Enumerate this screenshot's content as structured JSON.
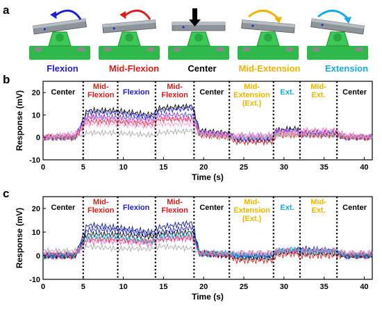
{
  "panels_label": {
    "a": "a",
    "b": "b",
    "c": "c"
  },
  "photo_titles": [
    {
      "text": "Flexion",
      "color": "#1f1fd6"
    },
    {
      "text": "Mid-Flexion",
      "color": "#e01b1b"
    },
    {
      "text": "Center",
      "color": "#000000"
    },
    {
      "text": "Mid-Extension",
      "color": "#f0b400"
    },
    {
      "text": "Extension",
      "color": "#1aa8e6"
    }
  ],
  "colors": {
    "center": "#000000",
    "mid_flexion": "#e01b1b",
    "flexion": "#1f1fd6",
    "mid_extension": "#f0b400",
    "extension": "#1aa8e6"
  },
  "icons": [
    "curved-arrow-left-icon",
    "curved-arrow-left-icon",
    "down-arrow-icon",
    "curved-arrow-right-icon",
    "curved-arrow-right-icon"
  ],
  "chart_data": [
    {
      "type": "line",
      "panel": "b",
      "xlabel": "Time (s)",
      "ylabel": "Response (mV)",
      "xlim": [
        0,
        41
      ],
      "ylim": [
        -10,
        25
      ],
      "xticks": [
        0,
        5,
        10,
        15,
        20,
        25,
        30,
        35,
        40
      ],
      "yticks": [
        -10,
        0,
        10,
        20
      ],
      "dividers": [
        5,
        9.3,
        14,
        18.8,
        23.2,
        28.7,
        32,
        36.6
      ],
      "segments": [
        {
          "lines": [
            "Center"
          ],
          "x": 2.5,
          "colorKey": "center"
        },
        {
          "lines": [
            "Mid-",
            "Flexion"
          ],
          "x": 7.2,
          "colorKey": "mid_flexion"
        },
        {
          "lines": [
            "Flexion"
          ],
          "x": 11.6,
          "colorKey": "flexion"
        },
        {
          "lines": [
            "Mid-",
            "Flexion"
          ],
          "x": 16.4,
          "colorKey": "mid_flexion"
        },
        {
          "lines": [
            "Center"
          ],
          "x": 21.0,
          "colorKey": "center"
        },
        {
          "lines": [
            "Mid-",
            "Extension",
            "(Ext.)"
          ],
          "x": 26.0,
          "colorKey": "mid_extension"
        },
        {
          "lines": [
            "Ext."
          ],
          "x": 30.4,
          "colorKey": "extension"
        },
        {
          "lines": [
            "Mid-",
            "Ext."
          ],
          "x": 34.3,
          "colorKey": "mid_extension"
        },
        {
          "lines": [
            "Center"
          ],
          "x": 38.8,
          "colorKey": "center"
        }
      ],
      "series": [
        {
          "color": "#000000",
          "x": [
            0,
            4,
            5.5,
            9,
            13.5,
            14.5,
            18.6,
            19.5,
            23.2,
            24,
            28.5,
            29,
            31.5,
            32,
            36.5,
            37.5,
            41
          ],
          "y": [
            0,
            0,
            12,
            12,
            10,
            13,
            14,
            3,
            2,
            -1,
            -1,
            3,
            4,
            2,
            2,
            0,
            0
          ]
        },
        {
          "color": "#1f1fd6",
          "x": [
            0,
            4,
            5.5,
            9,
            13.5,
            14.5,
            18.6,
            19.5,
            23.2,
            24,
            28.5,
            29,
            31.5,
            32,
            36.5,
            37.5,
            41
          ],
          "y": [
            0,
            0,
            11,
            11,
            9,
            12,
            13,
            2,
            1,
            -1,
            -1,
            3,
            3,
            2,
            2,
            0,
            0
          ]
        },
        {
          "color": "#5a3fd6",
          "x": [
            0,
            4,
            5.5,
            9,
            13.5,
            14.5,
            18.6,
            19.5,
            23.2,
            24,
            28.5,
            29,
            31.5,
            32,
            36.5,
            37.5,
            41
          ],
          "y": [
            0,
            0,
            9,
            9,
            8,
            10,
            10,
            2,
            1,
            0,
            0,
            2,
            3,
            1,
            1,
            0,
            0
          ]
        },
        {
          "color": "#e01b1b",
          "x": [
            0,
            4,
            5.5,
            9,
            13.5,
            14.5,
            18.6,
            19.5,
            23.2,
            24,
            28.5,
            29,
            31.5,
            32,
            36.5,
            37.5,
            41
          ],
          "y": [
            0,
            0,
            7,
            7,
            6,
            8,
            8,
            1,
            0,
            -2,
            -2,
            1,
            1,
            1,
            1,
            0,
            0
          ]
        },
        {
          "color": "#ff5fc8",
          "x": [
            0,
            4,
            5.5,
            9,
            13.5,
            14.5,
            18.6,
            19.5,
            23.2,
            24,
            28.5,
            29,
            31.5,
            32,
            36.5,
            37.5,
            41
          ],
          "y": [
            0,
            1,
            9,
            8,
            7,
            9,
            8,
            2,
            1,
            1,
            1,
            3,
            2,
            3,
            3,
            1,
            0
          ]
        },
        {
          "color": "#ff9ad6",
          "x": [
            0,
            4,
            5.5,
            9,
            13.5,
            14.5,
            18.6,
            19.5,
            23.2,
            24,
            28.5,
            29,
            31.5,
            32,
            36.5,
            37.5,
            41
          ],
          "y": [
            0,
            2,
            6,
            6,
            5,
            6,
            6,
            2,
            1,
            0,
            0,
            2,
            2,
            2,
            2,
            1,
            0
          ]
        },
        {
          "color": "#aaaaaa",
          "x": [
            0,
            4,
            5.5,
            9,
            13.5,
            14.5,
            18.6,
            19.5,
            23.2,
            24,
            28.5,
            29,
            31.5,
            32,
            36.5,
            37.5,
            41
          ],
          "y": [
            0,
            0,
            2,
            2,
            1,
            2,
            3,
            1,
            0,
            0,
            0,
            1,
            1,
            1,
            1,
            0,
            0
          ]
        }
      ]
    },
    {
      "type": "line",
      "panel": "c",
      "xlabel": "Time (s)",
      "ylabel": "Response (mV)",
      "xlim": [
        0,
        41
      ],
      "ylim": [
        -10,
        25
      ],
      "xticks": [
        0,
        5,
        10,
        15,
        20,
        25,
        30,
        35,
        40
      ],
      "yticks": [
        -10,
        0,
        10,
        20
      ],
      "dividers": [
        5,
        9.3,
        14,
        18.8,
        23.2,
        28.7,
        32,
        36.6
      ],
      "segments": [
        {
          "lines": [
            "Center"
          ],
          "x": 2.5,
          "colorKey": "center"
        },
        {
          "lines": [
            "Mid-",
            "Flexion"
          ],
          "x": 7.2,
          "colorKey": "mid_flexion"
        },
        {
          "lines": [
            "Flexion"
          ],
          "x": 11.6,
          "colorKey": "flexion"
        },
        {
          "lines": [
            "Mid-",
            "Flexion"
          ],
          "x": 16.4,
          "colorKey": "mid_flexion"
        },
        {
          "lines": [
            "Center"
          ],
          "x": 21.0,
          "colorKey": "center"
        },
        {
          "lines": [
            "Mid-",
            "Extension",
            "(Ext.)"
          ],
          "x": 26.0,
          "colorKey": "mid_extension"
        },
        {
          "lines": [
            "Ext."
          ],
          "x": 30.4,
          "colorKey": "extension"
        },
        {
          "lines": [
            "Mid-",
            "Ext."
          ],
          "x": 34.3,
          "colorKey": "mid_extension"
        },
        {
          "lines": [
            "Center"
          ],
          "x": 38.8,
          "colorKey": "center"
        }
      ],
      "series": [
        {
          "color": "#0a1a8a",
          "x": [
            0,
            4,
            5.5,
            9,
            13.5,
            14.5,
            18.6,
            19.5,
            23.2,
            24,
            28.5,
            29,
            31.5,
            32,
            36.5,
            37.5,
            41
          ],
          "y": [
            0,
            0,
            13,
            12,
            10,
            12,
            14,
            1,
            1,
            0,
            0,
            2,
            2,
            3,
            2,
            0,
            0
          ]
        },
        {
          "color": "#1f1fd6",
          "x": [
            0,
            4,
            5.5,
            9,
            13.5,
            14.5,
            18.6,
            19.5,
            23.2,
            24,
            28.5,
            29,
            31.5,
            32,
            36.5,
            37.5,
            41
          ],
          "y": [
            0,
            0,
            11,
            11,
            9,
            10,
            12,
            1,
            0,
            0,
            0,
            2,
            2,
            2,
            2,
            0,
            0
          ]
        },
        {
          "color": "#000000",
          "x": [
            0,
            4,
            5.5,
            9,
            13.5,
            14.5,
            18.6,
            19.5,
            23.2,
            24,
            28.5,
            29,
            31.5,
            32,
            36.5,
            37.5,
            41
          ],
          "y": [
            0,
            0,
            9,
            9,
            8,
            9,
            10,
            1,
            0,
            -1,
            -1,
            1,
            2,
            1,
            1,
            0,
            0
          ]
        },
        {
          "color": "#e01b1b",
          "x": [
            0,
            4,
            5.5,
            9,
            13.5,
            14.5,
            18.6,
            19.5,
            23.2,
            24,
            28.5,
            29,
            31.5,
            32,
            36.5,
            37.5,
            41
          ],
          "y": [
            0,
            0,
            7,
            7,
            6,
            7,
            8,
            1,
            0,
            -2,
            -2,
            0,
            1,
            0,
            0,
            0,
            0
          ]
        },
        {
          "color": "#ff5fc8",
          "x": [
            0,
            4,
            5.5,
            9,
            13.5,
            14.5,
            18.6,
            19.5,
            23.2,
            24,
            28.5,
            29,
            31.5,
            32,
            36.5,
            37.5,
            41
          ],
          "y": [
            1,
            1,
            6,
            6,
            5,
            7,
            7,
            1,
            1,
            1,
            1,
            2,
            2,
            2,
            2,
            1,
            1
          ]
        },
        {
          "color": "#1aa8e6",
          "x": [
            0,
            4,
            5.5,
            9,
            13.5,
            14.5,
            18.6,
            19.5,
            23.2,
            24,
            28.5,
            29,
            31.5,
            32,
            36.5,
            37.5,
            41
          ],
          "y": [
            0,
            0,
            8,
            8,
            6,
            8,
            9,
            1,
            1,
            0,
            0,
            2,
            3,
            2,
            2,
            0,
            0
          ]
        },
        {
          "color": "#aaaaaa",
          "x": [
            0,
            4,
            5.5,
            9,
            13.5,
            14.5,
            18.6,
            19.5,
            23.2,
            24,
            28.5,
            29,
            31.5,
            32,
            36.5,
            37.5,
            41
          ],
          "y": [
            2,
            2,
            4,
            3,
            3,
            4,
            3,
            1,
            1,
            1,
            1,
            2,
            2,
            2,
            2,
            1,
            1
          ]
        }
      ]
    }
  ]
}
